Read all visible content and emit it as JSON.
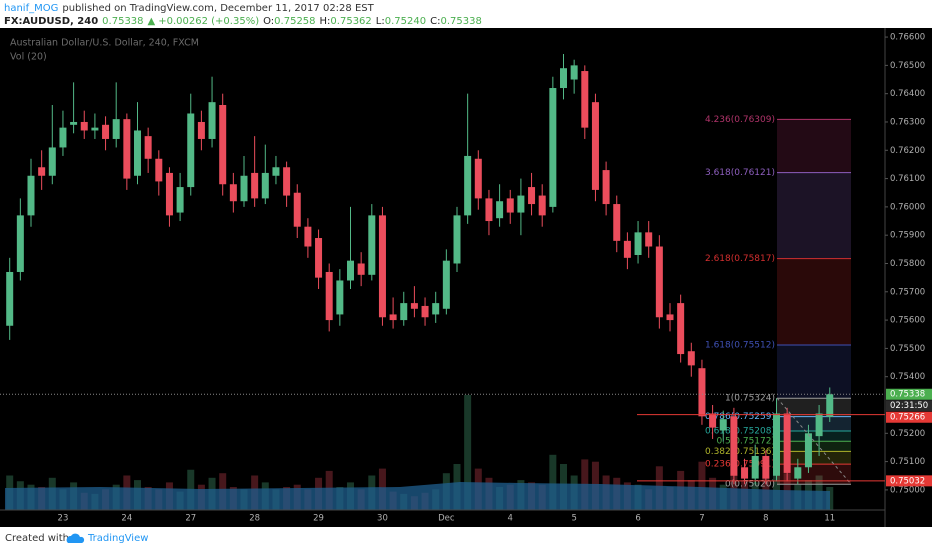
{
  "header": {
    "author": "hanif_MOG",
    "published": "published on TradingView.com, December 11, 2017 02:28 EST",
    "symbol": "FX:AUDUSD, 240",
    "last": "0.75338",
    "arrow": "▲",
    "change": "+0.00262 (+0.35%)",
    "o_label": "O:",
    "o": "0.75258",
    "h_label": "H:",
    "h": "0.75362",
    "l_label": "L:",
    "l": "0.75240",
    "c_label": "C:",
    "c": "0.75338"
  },
  "footer": {
    "text": "Created with",
    "brand": "TradingView"
  },
  "chart_data": {
    "type": "candlestick",
    "title": "Australian Dollar/U.S. Dollar, 240, FXCM",
    "volume_label": "Vol (20)",
    "up_color": "#53b987",
    "down_color": "#eb4d5c",
    "categories": [
      null,
      null,
      null,
      null,
      null,
      "23",
      null,
      null,
      null,
      null,
      null,
      "24",
      null,
      null,
      null,
      null,
      null,
      "27",
      null,
      null,
      null,
      null,
      null,
      "28",
      null,
      null,
      null,
      null,
      null,
      "29",
      null,
      null,
      null,
      null,
      null,
      "30",
      null,
      null,
      null,
      null,
      null,
      "Dec",
      null,
      null,
      null,
      null,
      null,
      "4",
      null,
      null,
      null,
      null,
      null,
      "5",
      null,
      null,
      null,
      null,
      null,
      "6",
      null,
      null,
      null,
      null,
      null,
      "7",
      null,
      null,
      null,
      null,
      null,
      "8",
      null,
      null,
      null,
      null,
      null,
      "11"
    ],
    "open": [
      0.7558,
      0.7577,
      0.7597,
      0.7614,
      0.7611,
      0.7621,
      0.7629,
      0.763,
      0.7627,
      0.7629,
      0.7624,
      0.7631,
      0.7611,
      0.7625,
      0.7617,
      0.7612,
      0.7598,
      0.7607,
      0.763,
      0.7624,
      0.7636,
      0.7608,
      0.7602,
      0.7612,
      0.7603,
      0.7611,
      0.7614,
      0.7605,
      0.7593,
      0.7589,
      0.7577,
      0.7562,
      0.7574,
      0.758,
      0.7576,
      0.7597,
      0.7562,
      0.756,
      0.7566,
      0.7565,
      0.7562,
      0.7564,
      0.758,
      0.7597,
      0.7617,
      0.7603,
      0.7596,
      0.7603,
      0.7598,
      0.7607,
      0.7604,
      0.76,
      0.7642,
      0.7645,
      0.7648,
      0.7637,
      0.7613,
      0.7601,
      0.7588,
      0.7583,
      0.7591,
      0.7586,
      0.7562,
      0.7566,
      0.7549,
      0.7543,
      0.7527,
      0.7521,
      0.7526,
      0.7508,
      0.7504,
      0.7512,
      0.7505,
      0.7527,
      0.7504,
      0.7508,
      0.7519,
      0.75258
    ],
    "close": [
      0.7577,
      0.7597,
      0.7611,
      0.7611,
      0.7621,
      0.7628,
      0.763,
      0.7627,
      0.7628,
      0.7624,
      0.7631,
      0.761,
      0.7627,
      0.7617,
      0.7609,
      0.7597,
      0.7607,
      0.7633,
      0.7624,
      0.7637,
      0.7608,
      0.7602,
      0.7611,
      0.7603,
      0.7612,
      0.7614,
      0.7604,
      0.7593,
      0.7586,
      0.7575,
      0.756,
      0.7574,
      0.7581,
      0.7576,
      0.7597,
      0.7561,
      0.756,
      0.7566,
      0.7564,
      0.7561,
      0.7566,
      0.7581,
      0.7597,
      0.7618,
      0.7603,
      0.7595,
      0.7602,
      0.7598,
      0.7604,
      0.7601,
      0.7597,
      0.7642,
      0.7649,
      0.765,
      0.7628,
      0.7606,
      0.7601,
      0.7588,
      0.7582,
      0.7591,
      0.7586,
      0.7561,
      0.756,
      0.7548,
      0.7544,
      0.7526,
      0.7522,
      0.7525,
      0.7505,
      0.7504,
      0.7512,
      0.7504,
      0.7527,
      0.7506,
      0.7508,
      0.752,
      0.7527,
      0.75338
    ],
    "high": [
      0.7582,
      0.7603,
      0.7617,
      0.762,
      0.7636,
      0.7634,
      0.7644,
      0.7634,
      0.7633,
      0.7632,
      0.7644,
      0.7633,
      0.7637,
      0.7628,
      0.762,
      0.7614,
      0.7612,
      0.764,
      0.7634,
      0.7646,
      0.764,
      0.7612,
      0.7618,
      0.7625,
      0.7622,
      0.7618,
      0.7616,
      0.7608,
      0.7596,
      0.7592,
      0.758,
      0.7578,
      0.76,
      0.7584,
      0.7601,
      0.76,
      0.7568,
      0.757,
      0.7572,
      0.7568,
      0.757,
      0.7585,
      0.76,
      0.764,
      0.762,
      0.7606,
      0.7608,
      0.7606,
      0.761,
      0.7612,
      0.7608,
      0.7646,
      0.7654,
      0.7652,
      0.765,
      0.764,
      0.7616,
      0.7604,
      0.7591,
      0.7595,
      0.7595,
      0.759,
      0.7566,
      0.7569,
      0.7552,
      0.7546,
      0.753,
      0.7528,
      0.7529,
      0.7511,
      0.7516,
      0.7514,
      0.75324,
      0.7529,
      0.7511,
      0.7523,
      0.753,
      0.75362
    ],
    "low": [
      0.7553,
      0.7574,
      0.7593,
      0.7606,
      0.7608,
      0.7618,
      0.7626,
      0.7624,
      0.7624,
      0.762,
      0.7621,
      0.7606,
      0.7608,
      0.7612,
      0.7604,
      0.7593,
      0.7595,
      0.7604,
      0.762,
      0.7621,
      0.7604,
      0.7598,
      0.76,
      0.76,
      0.7601,
      0.7608,
      0.76,
      0.7589,
      0.7582,
      0.7571,
      0.7556,
      0.7558,
      0.7571,
      0.7572,
      0.7574,
      0.7558,
      0.7557,
      0.7558,
      0.7561,
      0.7558,
      0.7559,
      0.7562,
      0.7577,
      0.7594,
      0.7599,
      0.759,
      0.7593,
      0.7594,
      0.759,
      0.7597,
      0.7593,
      0.7598,
      0.7638,
      0.764,
      0.7624,
      0.7602,
      0.7597,
      0.7584,
      0.7578,
      0.758,
      0.7582,
      0.7557,
      0.7556,
      0.7545,
      0.754,
      0.7523,
      0.7518,
      0.7517,
      0.7502,
      0.7502,
      0.7502,
      0.7502,
      0.7503,
      0.7503,
      0.7502,
      0.7506,
      0.7512,
      0.7524
    ],
    "volume": [
      30,
      25,
      22,
      20,
      28,
      18,
      24,
      15,
      14,
      18,
      22,
      30,
      26,
      20,
      18,
      24,
      16,
      35,
      22,
      28,
      32,
      20,
      18,
      30,
      24,
      18,
      20,
      22,
      18,
      28,
      34,
      20,
      24,
      18,
      30,
      36,
      16,
      14,
      12,
      15,
      18,
      32,
      40,
      100,
      36,
      28,
      20,
      22,
      26,
      24,
      22,
      48,
      40,
      30,
      44,
      42,
      30,
      28,
      24,
      22,
      18,
      38,
      20,
      34,
      26,
      42,
      28,
      22,
      40,
      26,
      24,
      30,
      36,
      32,
      22,
      26,
      30,
      20
    ],
    "ylim": [
      0.74929,
      0.76625
    ],
    "yticks": [
      {
        "value": 0.766,
        "label": "0.76600"
      },
      {
        "value": 0.765,
        "label": "0.76500"
      },
      {
        "value": 0.764,
        "label": "0.76400"
      },
      {
        "value": 0.763,
        "label": "0.76300"
      },
      {
        "value": 0.762,
        "label": "0.76200"
      },
      {
        "value": 0.761,
        "label": "0.76100"
      },
      {
        "value": 0.76,
        "label": "0.76000"
      },
      {
        "value": 0.759,
        "label": "0.75900"
      },
      {
        "value": 0.758,
        "label": "0.75800"
      },
      {
        "value": 0.757,
        "label": "0.75700"
      },
      {
        "value": 0.756,
        "label": "0.75600"
      },
      {
        "value": 0.755,
        "label": "0.75500"
      },
      {
        "value": 0.754,
        "label": "0.75400"
      },
      {
        "value": 0.752,
        "label": "0.75200"
      },
      {
        "value": 0.751,
        "label": "0.75100"
      },
      {
        "value": 0.75,
        "label": "0.75000"
      }
    ],
    "grid": false,
    "fib": [
      {
        "value": 0.76309,
        "label": "4.236(0.76309)",
        "color": "#b0346a"
      },
      {
        "value": 0.76121,
        "label": "3.618(0.76121)",
        "color": "#8e5fbf"
      },
      {
        "value": 0.75817,
        "label": "2.618(0.75817)",
        "color": "#d32f2f"
      },
      {
        "value": 0.75512,
        "label": "1.618(0.75512)",
        "color": "#3f51b5"
      },
      {
        "value": 0.75324,
        "label": "1(0.75324)",
        "color": "#9e9e9e"
      },
      {
        "value": 0.75259,
        "label": "0.786(0.75259)",
        "color": "#64b5f6"
      },
      {
        "value": 0.75208,
        "label": "0.618(0.75208)",
        "color": "#26a69a"
      },
      {
        "value": 0.75172,
        "label": "0.5(0.75172)",
        "color": "#4caf50"
      },
      {
        "value": 0.75136,
        "label": "0.382(0.75136)",
        "color": "#afb42b"
      },
      {
        "value": 0.75091,
        "label": "0.236(0.75091)",
        "color": "#e53935"
      },
      {
        "value": 0.7502,
        "label": "0(0.75020)",
        "color": "#9e9e9e"
      }
    ],
    "price_lines": [
      {
        "value": 0.75338,
        "label": "0.75338",
        "color": "#4caf50",
        "style": "dotted"
      },
      {
        "value": 0.75266,
        "label": "0.75266",
        "color": "#e53935",
        "style": "solid"
      },
      {
        "value": 0.75032,
        "label": "0.75032",
        "color": "#e53935",
        "style": "solid"
      }
    ],
    "countdown": "02:31:50"
  }
}
